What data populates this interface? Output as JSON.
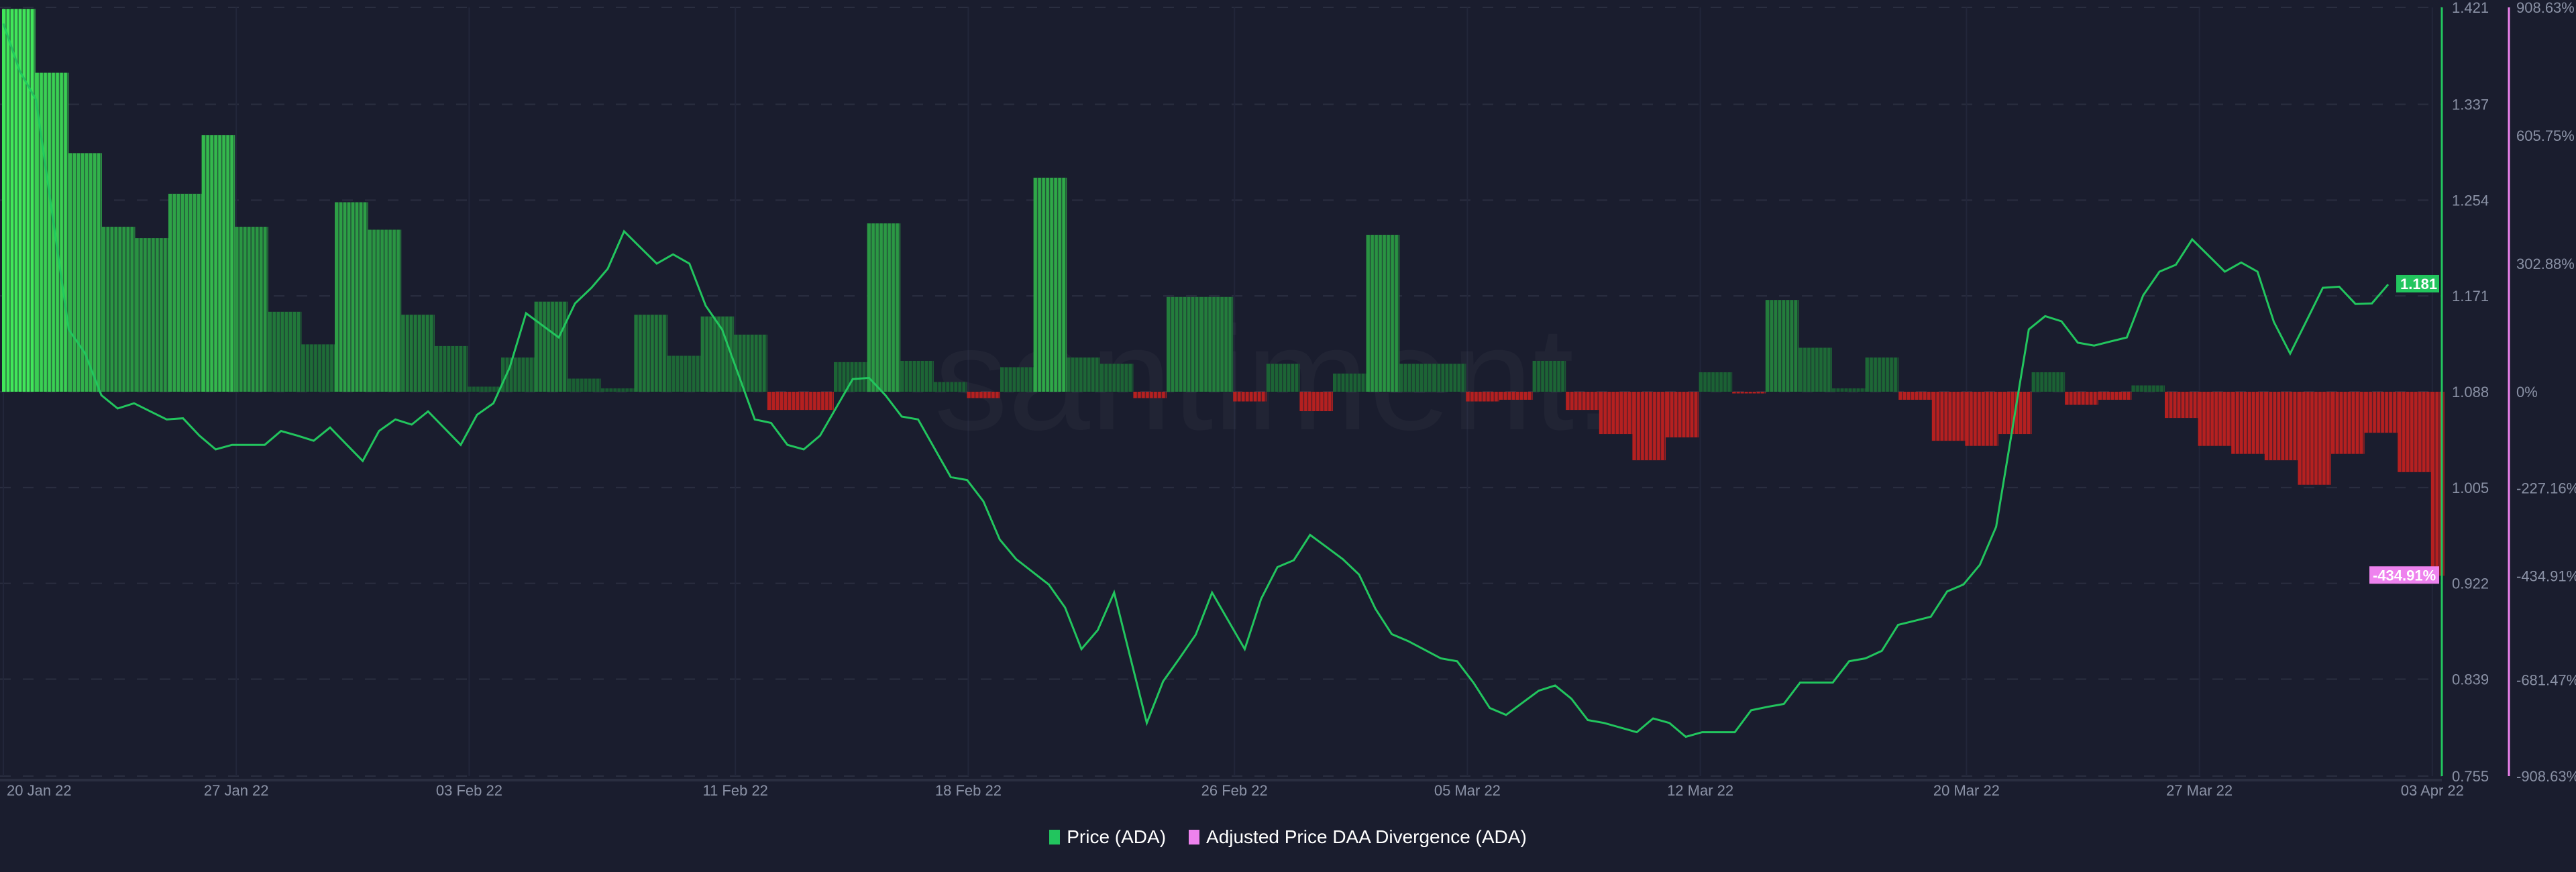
{
  "chart_data": {
    "type": "line+bar",
    "watermark": "santiment.",
    "x_ticks": [
      {
        "day": 0,
        "label": "20 Jan 22"
      },
      {
        "day": 7,
        "label": "27 Jan 22"
      },
      {
        "day": 14,
        "label": "03 Feb 22"
      },
      {
        "day": 22,
        "label": "11 Feb 22"
      },
      {
        "day": 29,
        "label": "18 Feb 22"
      },
      {
        "day": 37,
        "label": "26 Feb 22"
      },
      {
        "day": 44,
        "label": "05 Mar 22"
      },
      {
        "day": 51,
        "label": "12 Mar 22"
      },
      {
        "day": 59,
        "label": "20 Mar 22"
      },
      {
        "day": 66,
        "label": "27 Mar 22"
      },
      {
        "day": 73,
        "label": "03 Apr 22"
      }
    ],
    "x_range": [
      "2022-01-20",
      "2022-04-03"
    ],
    "left_axis": {
      "ylim": [
        0.755,
        1.421
      ],
      "ticks": [
        "1.421",
        "1.337",
        "1.254",
        "1.171",
        "1.088",
        "1.005",
        "0.922",
        "0.839",
        "0.755"
      ],
      "color": "#22c55e"
    },
    "right_axis": {
      "ylim": [
        -908.63,
        908.63
      ],
      "ticks": [
        "908.63%",
        "605.75%",
        "302.88%",
        "0%",
        "-227.16%",
        "-434.91%",
        "-681.47%",
        "-908.63%"
      ],
      "color": "#ee82ee"
    },
    "last_price_label": "1.181",
    "last_divergence_label": "-434.91%",
    "series": [
      {
        "name": "Price (ADA)",
        "type": "line",
        "color": "#22c55e",
        "values": [
          1.407,
          1.341,
          1.142,
          1.085,
          1.078,
          1.064,
          1.05,
          1.042,
          1.042,
          1.05,
          1.057,
          1.028,
          1.064,
          1.071,
          1.042,
          1.078,
          1.156,
          1.135,
          1.178,
          1.227,
          1.199,
          1.199,
          1.142,
          1.064,
          1.042,
          1.05,
          1.099,
          1.085,
          1.064,
          1.014,
          0.993,
          0.943,
          0.921,
          0.865,
          0.914,
          0.801,
          0.857,
          0.914,
          0.865,
          0.936,
          0.964,
          0.943,
          0.9,
          0.872,
          0.857,
          0.836,
          0.808,
          0.829,
          0.822,
          0.801,
          0.793,
          0.801,
          0.793,
          0.793,
          0.815,
          0.836,
          0.836,
          0.857,
          0.886,
          0.893,
          0.921,
          0.971,
          1.142,
          1.149,
          1.128,
          1.135,
          1.192,
          1.22,
          1.192,
          1.192,
          1.121,
          1.178,
          1.164,
          1.181
        ]
      },
      {
        "name": "Adjusted Price DAA Divergence (ADA)",
        "type": "bar",
        "color": "#ee82ee",
        "positive_color": "#3ee05a",
        "negative_color": "#b52020",
        "values": [
          905,
          754,
          564,
          390,
          363,
          468,
          607,
          390,
          189,
          112,
          448,
          383,
          182,
          108,
          12,
          81,
          213,
          31,
          8,
          182,
          85,
          178,
          135,
          -43,
          -43,
          70,
          398,
          73,
          23,
          -15,
          58,
          506,
          81,
          66,
          -15,
          224,
          224,
          -23,
          66,
          -46,
          43,
          371,
          66,
          66,
          -23,
          -19,
          73,
          -43,
          -100,
          -162,
          -108,
          46,
          -4,
          217,
          104,
          8,
          81,
          -19,
          -116,
          -128,
          -100,
          46,
          -31,
          -19,
          15,
          -62,
          -128,
          -147,
          -162,
          -220,
          -147,
          -97,
          -190,
          -435
        ]
      }
    ]
  },
  "legend": {
    "price": "Price (ADA)",
    "divergence": "Adjusted Price DAA Divergence (ADA)"
  }
}
